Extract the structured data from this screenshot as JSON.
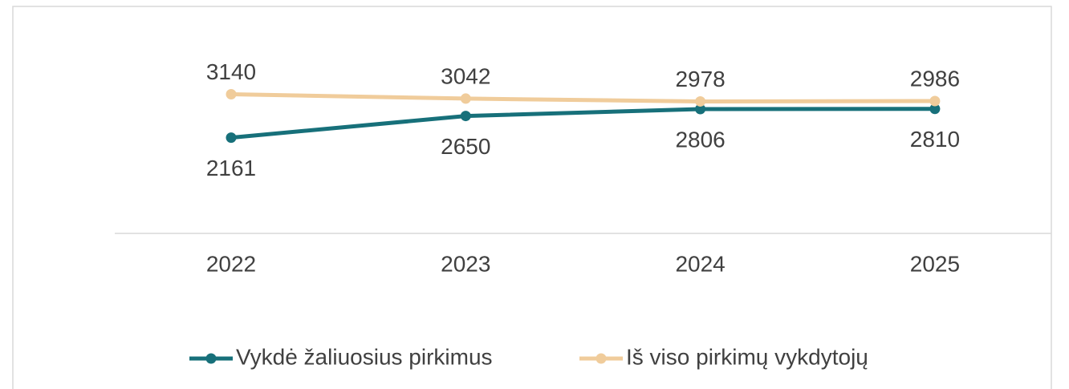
{
  "chart_data": {
    "type": "line",
    "categories": [
      "2022",
      "2023",
      "2024",
      "2025"
    ],
    "series": [
      {
        "name": "Vykdė žaliuosius pirkimus",
        "color": "#17707a",
        "values": [
          2161,
          2650,
          2806,
          2810
        ]
      },
      {
        "name": "Iš viso pirkimų vykdytojų",
        "color": "#f0cc9b",
        "values": [
          3140,
          3042,
          2978,
          2986
        ]
      }
    ],
    "ylim": [
      0,
      4000
    ],
    "legend": "bottom"
  }
}
